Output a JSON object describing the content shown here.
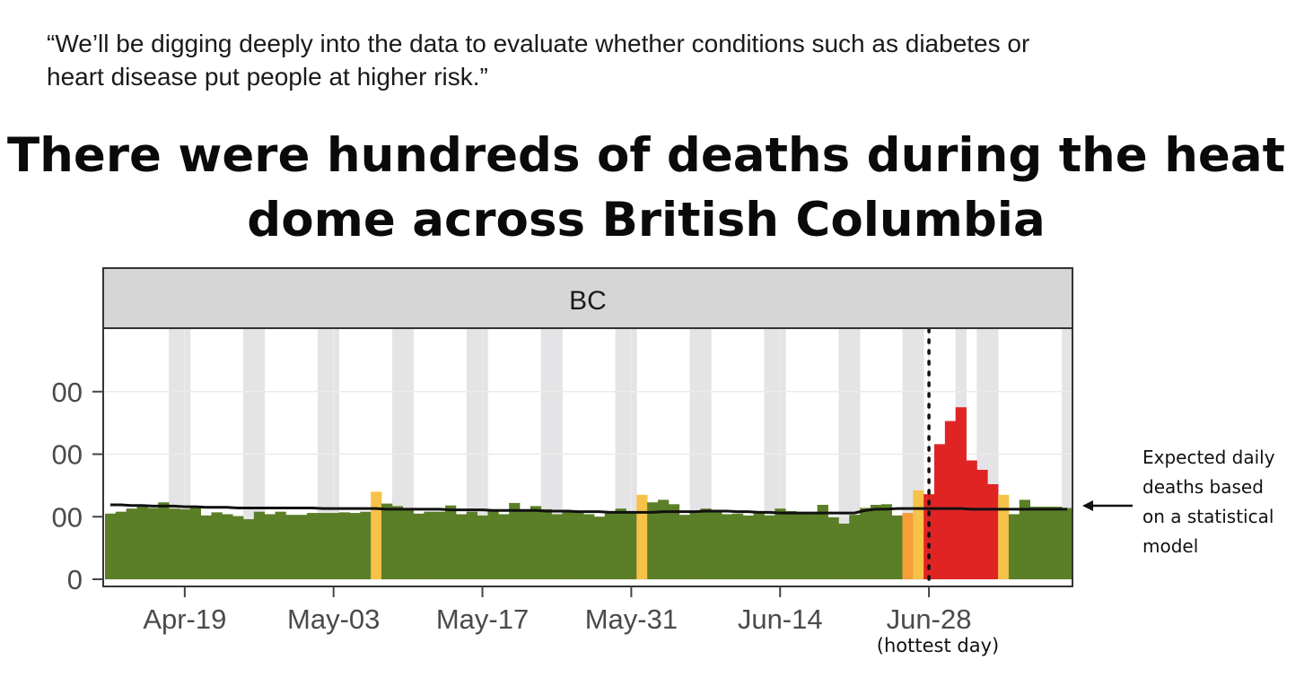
{
  "quote": {
    "line1": "“We’ll be digging deeply into the data to evaluate whether conditions such as diabetes or",
    "line2": "heart disease put people at higher risk.”"
  },
  "chart_data": {
    "type": "bar",
    "title_lines": [
      "There were hundreds of deaths during the heat",
      "dome across British Columbia"
    ],
    "facet_label": "BC",
    "x_tick_labels": [
      "Apr-19",
      "May-03",
      "May-17",
      "May-31",
      "Jun-14",
      "Jun-28"
    ],
    "x_tick_day_index": [
      7,
      21,
      35,
      49,
      63,
      77
    ],
    "hottest_day_label": "(hottest day)",
    "hottest_day_index": 77,
    "y_tick_labels": [
      "0",
      "00",
      "00",
      "00"
    ],
    "y_ticks": [
      0,
      100,
      200,
      300
    ],
    "ylim": [
      0,
      400
    ],
    "xlim": [
      -0.5,
      90.5
    ],
    "weekend_day_indices": [
      6,
      7,
      13,
      14,
      20,
      21,
      27,
      28,
      34,
      35,
      41,
      42,
      48,
      49,
      55,
      56,
      62,
      63,
      69,
      70,
      75,
      76,
      80,
      82,
      83,
      90
    ],
    "annotation_lines": [
      "Expected daily",
      "deaths based",
      "on a statistical",
      "model"
    ],
    "colors": {
      "normal": "#5b7f27",
      "moderate": "#f7c24a",
      "elevated": "#f59e3a",
      "high": "#e02424",
      "weekend": "#e4e4e6",
      "expected": "#111111",
      "strip": "#d6d6d6"
    },
    "series": [
      {
        "values": [
          105,
          108,
          113,
          116,
          114,
          123,
          113,
          112,
          114,
          102,
          107,
          104,
          101,
          96,
          108,
          104,
          108,
          103,
          103,
          106,
          106,
          106,
          107,
          106,
          108,
          140,
          121,
          117,
          111,
          105,
          108,
          108,
          118,
          104,
          108,
          102,
          110,
          104,
          122,
          110,
          117,
          112,
          104,
          109,
          108,
          104,
          100,
          109,
          113,
          108,
          135,
          123,
          127,
          120,
          103,
          110,
          113,
          109,
          104,
          105,
          102,
          109,
          102,
          113,
          109,
          104,
          104,
          119,
          99,
          89,
          103,
          114,
          119,
          120,
          102,
          106,
          142,
          136,
          216,
          253,
          275,
          190,
          175,
          152,
          135,
          104,
          127,
          116,
          116,
          116,
          114
        ],
        "categories": [
          "normal",
          "normal",
          "normal",
          "normal",
          "normal",
          "normal",
          "normal",
          "normal",
          "normal",
          "normal",
          "normal",
          "normal",
          "normal",
          "normal",
          "normal",
          "normal",
          "normal",
          "normal",
          "normal",
          "normal",
          "normal",
          "normal",
          "normal",
          "normal",
          "normal",
          "moderate",
          "normal",
          "normal",
          "normal",
          "normal",
          "normal",
          "normal",
          "normal",
          "normal",
          "normal",
          "normal",
          "normal",
          "normal",
          "normal",
          "normal",
          "normal",
          "normal",
          "normal",
          "normal",
          "normal",
          "normal",
          "normal",
          "normal",
          "normal",
          "normal",
          "moderate",
          "normal",
          "normal",
          "normal",
          "normal",
          "normal",
          "normal",
          "normal",
          "normal",
          "normal",
          "normal",
          "normal",
          "normal",
          "normal",
          "normal",
          "normal",
          "normal",
          "normal",
          "normal",
          "normal",
          "normal",
          "normal",
          "normal",
          "normal",
          "normal",
          "elevated",
          "moderate",
          "high",
          "high",
          "high",
          "high",
          "high",
          "high",
          "high",
          "moderate",
          "normal",
          "normal",
          "normal",
          "normal",
          "normal",
          "normal"
        ]
      },
      {
        "values": [
          119,
          119,
          118,
          118,
          117,
          117,
          117,
          116,
          116,
          115,
          115,
          115,
          114,
          114,
          114,
          114,
          114,
          114,
          114,
          114,
          113,
          113,
          113,
          113,
          113,
          113,
          112,
          112,
          112,
          112,
          112,
          112,
          111,
          111,
          111,
          111,
          110,
          110,
          110,
          110,
          110,
          109,
          109,
          109,
          108,
          108,
          108,
          107,
          107,
          107,
          107,
          107,
          108,
          108,
          108,
          108,
          109,
          109,
          109,
          108,
          108,
          107,
          107,
          106,
          106,
          106,
          106,
          106,
          106,
          106,
          106,
          110,
          112,
          112,
          113,
          113,
          113,
          113,
          113,
          113,
          113,
          112,
          112,
          112,
          112,
          112,
          112,
          112,
          112,
          112,
          112
        ]
      }
    ]
  }
}
